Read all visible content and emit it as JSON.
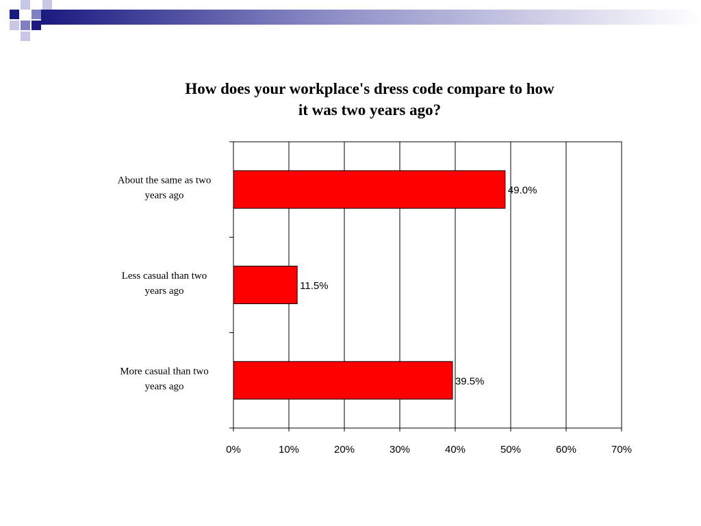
{
  "chart_data": {
    "type": "bar",
    "orientation": "horizontal",
    "title": "How does your workplace's dress code compare to how it was two years ago?",
    "title_lines": [
      "How does your workplace's dress code compare to how",
      "it was two years ago?"
    ],
    "categories": [
      [
        "About the same as two",
        "years ago"
      ],
      [
        "Less casual than two",
        "years ago"
      ],
      [
        "More casual than two",
        "years ago"
      ]
    ],
    "values": [
      49.0,
      11.5,
      39.5
    ],
    "data_labels": [
      "49.0%",
      "11.5%",
      "39.5%"
    ],
    "xlim": [
      0,
      70
    ],
    "x_ticks": [
      0,
      10,
      20,
      30,
      40,
      50,
      60,
      70
    ],
    "x_tick_labels": [
      "0%",
      "10%",
      "20%",
      "30%",
      "40%",
      "50%",
      "60%",
      "70%"
    ],
    "grid": true,
    "bar_color": "#ff0000",
    "xlabel": "",
    "ylabel": ""
  },
  "theme": {
    "deco_dark": "#1a1a80",
    "deco_mid": "#8080c0",
    "deco_light": "#c8c8e6"
  }
}
